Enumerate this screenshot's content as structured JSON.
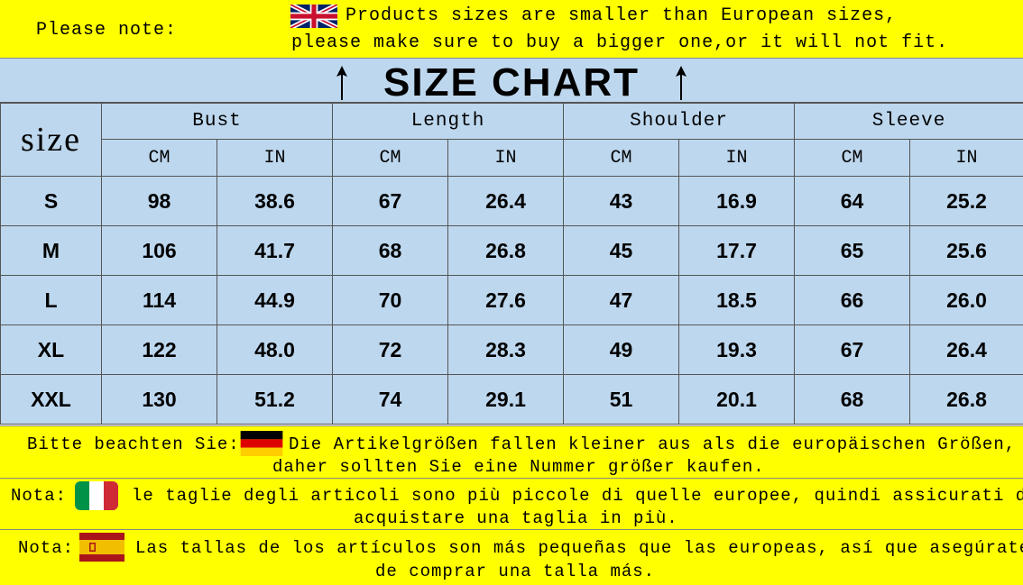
{
  "top_note": {
    "label": "Please note:",
    "flag_icon": "uk-flag-icon",
    "line1": "Products sizes are smaller than European sizes,",
    "line2": "please make sure to buy a bigger one,or it will not fit."
  },
  "title": "SIZE CHART",
  "table": {
    "corner_label": "size",
    "groups": [
      "Bust",
      "Length",
      "Shoulder",
      "Sleeve"
    ],
    "units": [
      "CM",
      "IN",
      "CM",
      "IN",
      "CM",
      "IN",
      "CM",
      "IN"
    ],
    "rows": [
      {
        "size": "S",
        "values": [
          "98",
          "38.6",
          "67",
          "26.4",
          "43",
          "16.9",
          "64",
          "25.2"
        ]
      },
      {
        "size": "M",
        "values": [
          "106",
          "41.7",
          "68",
          "26.8",
          "45",
          "17.7",
          "65",
          "25.6"
        ]
      },
      {
        "size": "L",
        "values": [
          "114",
          "44.9",
          "70",
          "27.6",
          "47",
          "18.5",
          "66",
          "26.0"
        ]
      },
      {
        "size": "XL",
        "values": [
          "122",
          "48.0",
          "72",
          "28.3",
          "49",
          "19.3",
          "67",
          "26.4"
        ]
      },
      {
        "size": "XXL",
        "values": [
          "130",
          "51.2",
          "74",
          "29.1",
          "51",
          "20.1",
          "68",
          "26.8"
        ]
      }
    ]
  },
  "notes": {
    "german": {
      "label": "Bitte beachten Sie:",
      "flag_icon": "germany-flag-icon",
      "line1": "Die Artikelgrößen fallen kleiner aus als die europäischen Größen,",
      "line2": "daher sollten Sie eine Nummer größer kaufen."
    },
    "italian": {
      "label": "Nota:",
      "flag_icon": "italy-flag-icon",
      "line1": "le taglie degli articoli sono più piccole di quelle europee, quindi assicurati di",
      "line2": "acquistare una taglia in più."
    },
    "spanish": {
      "label": "Nota:",
      "flag_icon": "spain-flag-icon",
      "line1": "Las tallas de los artículos son más pequeñas que las europeas, así que asegúrate",
      "line2": "de comprar una talla más."
    }
  },
  "colors": {
    "note_yellow": "#ffff00",
    "table_blue": "#bdd7ee",
    "text": "#000000"
  }
}
